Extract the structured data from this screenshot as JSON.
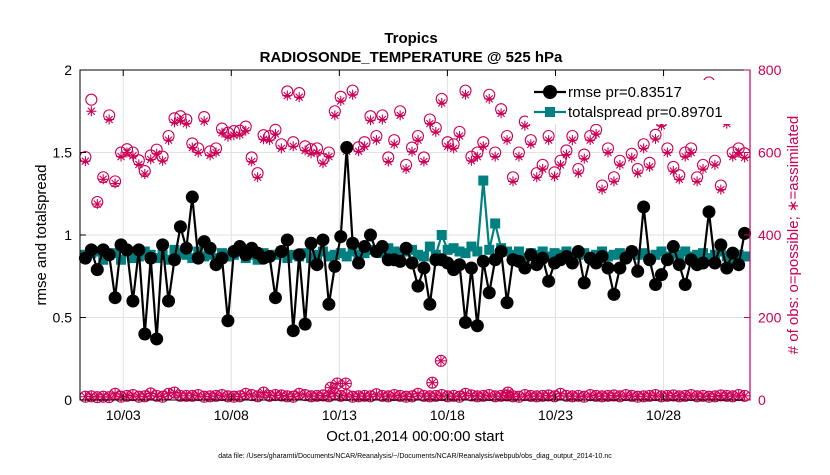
{
  "chart_data": {
    "type": "line",
    "title": "Tropics",
    "subtitle": "RADIOSONDE_TEMPERATURE @ 525 hPa",
    "xlabel": "Oct.01,2014 00:00:00 start",
    "ylabel_left": "rmse and totalspread",
    "ylabel_right": "# of obs: o=possible; ∗=assimilated",
    "footer": "data file: /Users/gharamti/Documents/NCAR/Reanalysis/~/Documents/NCAR/Reanalysis/webpub/obs_diag_output_2014-10.nc",
    "x_unit": "days since Oct.01,2014 00:00:00",
    "xlim": [
      1.0,
      32.0
    ],
    "ylim_left": [
      0,
      2
    ],
    "ylim_right": [
      0,
      800
    ],
    "x_ticks": [
      3,
      8,
      13,
      18,
      23,
      28
    ],
    "x_tick_labels": [
      "10/03",
      "10/08",
      "10/13",
      "10/18",
      "10/23",
      "10/28"
    ],
    "y_ticks_left": [
      "0",
      "0.5",
      "1",
      "1.5",
      "2"
    ],
    "y_ticks_right": [
      "0",
      "200",
      "400",
      "600",
      "800"
    ],
    "grid": true,
    "legend_placement": "top-right",
    "colors": {
      "rmse": "#000000",
      "spread": "#008080",
      "obs": "#cc0055"
    },
    "series": [
      {
        "name": "rmse pr=0.83517",
        "values": [
          0.86,
          0.91,
          0.79,
          0.91,
          0.88,
          0.62,
          0.94,
          0.91,
          0.6,
          0.91,
          0.4,
          0.86,
          0.37,
          0.94,
          0.6,
          0.85,
          1.05,
          0.92,
          1.23,
          0.86,
          0.96,
          0.92,
          0.82,
          0.86,
          0.48,
          0.9,
          0.93,
          0.88,
          0.92,
          0.89,
          0.86,
          0.87,
          0.62,
          0.9,
          0.97,
          0.42,
          0.88,
          0.46,
          0.95,
          0.82,
          0.97,
          0.58,
          0.81,
          0.99,
          1.53,
          0.95,
          0.83,
          0.93,
          1.0,
          0.9,
          0.93,
          0.85,
          0.85,
          0.84,
          0.92,
          0.83,
          0.69,
          0.8,
          0.58,
          0.85,
          0.85,
          0.83,
          0.79,
          0.82,
          0.47,
          0.8,
          0.45,
          0.84,
          0.65,
          0.85,
          0.9,
          0.59,
          0.85,
          0.84,
          0.8,
          0.88,
          0.82,
          0.86,
          0.72,
          0.83,
          0.85,
          0.87,
          0.83,
          0.9,
          0.71,
          0.86,
          0.83,
          0.87,
          0.8,
          0.64,
          0.8,
          0.86,
          0.9,
          0.78,
          1.17,
          0.85,
          0.7,
          0.76,
          0.85,
          0.93,
          0.82,
          0.7,
          0.85,
          0.82,
          0.83,
          1.14,
          0.83,
          0.94,
          0.8,
          0.89,
          0.82,
          1.01
        ]
      },
      {
        "name": "totalspread pr=0.89701",
        "values": [
          0.88,
          0.89,
          0.9,
          0.85,
          0.88,
          0.89,
          0.85,
          0.9,
          0.86,
          0.87,
          0.9,
          0.88,
          0.86,
          0.88,
          0.85,
          0.91,
          0.89,
          0.88,
          0.86,
          0.9,
          0.87,
          0.88,
          0.86,
          0.89,
          0.87,
          0.88,
          0.9,
          0.86,
          0.88,
          0.85,
          0.89,
          0.87,
          0.88,
          0.9,
          0.86,
          0.88,
          0.87,
          0.89,
          0.86,
          0.88,
          0.9,
          0.87,
          0.88,
          0.89,
          0.87,
          0.9,
          0.88,
          0.89,
          0.91,
          0.9,
          0.89,
          0.92,
          0.9,
          0.89,
          0.9,
          0.91,
          0.88,
          0.87,
          0.93,
          0.88,
          1.0,
          0.91,
          0.92,
          0.9,
          0.89,
          0.93,
          0.9,
          1.33,
          0.91,
          1.07,
          0.92,
          0.9,
          0.88,
          0.9,
          0.86,
          0.89,
          0.88,
          0.9,
          0.87,
          0.89,
          0.88,
          0.9,
          0.87,
          0.88,
          0.89,
          0.86,
          0.88,
          0.9,
          0.87,
          0.88,
          0.89,
          0.87,
          0.9,
          0.88,
          0.89,
          0.86,
          0.88,
          0.9,
          0.87,
          0.89,
          0.88,
          0.9,
          0.87,
          0.88,
          0.89,
          0.86,
          0.88,
          0.9,
          0.87,
          0.85,
          0.88,
          0.87
        ]
      },
      {
        "name": "possible",
        "values": [
          589,
          728,
          480,
          540,
          690,
          530,
          600,
          608,
          600,
          581,
          555,
          593,
          607,
          590,
          640,
          683,
          688,
          680,
          622,
          610,
          686,
          603,
          610,
          658,
          648,
          652,
          653,
          663,
          588,
          550,
          642,
          640,
          655,
          620,
          748,
          625,
          744,
          615,
          608,
          610,
          584,
          600,
          700,
          735,
          613,
          750,
          613,
          625,
          688,
          640,
          690,
          588,
          630,
          700,
          570,
          612,
          640,
          588,
          680,
          660,
          730,
          625,
          620,
          650,
          750,
          590,
          600,
          625,
          740,
          600,
          705,
          640,
          540,
          600,
          675,
          630,
          550,
          570,
          640,
          552,
          580,
          605,
          640,
          560,
          595,
          640,
          655,
          520,
          610,
          540,
          580,
          700,
          597,
          560,
          620,
          575,
          643,
          675,
          610,
          565,
          545,
          600,
          610,
          540,
          570,
          770,
          580,
          520,
          680,
          600,
          610,
          598
        ]
      },
      {
        "name": "assimilated",
        "values": [
          579,
          700,
          475,
          535,
          680,
          525,
          590,
          600,
          592,
          571,
          548,
          583,
          597,
          580,
          630,
          673,
          678,
          670,
          612,
          600,
          676,
          593,
          600,
          648,
          638,
          642,
          643,
          653,
          578,
          540,
          632,
          630,
          645,
          610,
          738,
          615,
          734,
          605,
          598,
          600,
          574,
          590,
          690,
          725,
          603,
          740,
          603,
          615,
          678,
          630,
          680,
          578,
          620,
          690,
          560,
          602,
          630,
          578,
          670,
          650,
          720,
          615,
          610,
          640,
          740,
          580,
          590,
          615,
          730,
          590,
          695,
          630,
          530,
          590,
          665,
          620,
          540,
          560,
          630,
          542,
          570,
          595,
          630,
          550,
          585,
          630,
          645,
          510,
          600,
          530,
          570,
          690,
          587,
          550,
          610,
          565,
          633,
          665,
          600,
          555,
          535,
          590,
          600,
          530,
          560,
          760,
          570,
          510,
          670,
          590,
          600,
          588
        ]
      }
    ],
    "obs_possible_low": [
      8,
      9,
      7,
      8,
      7,
      15,
      8,
      10,
      12,
      8,
      9,
      16,
      10,
      8,
      15,
      18,
      10,
      10,
      10,
      12,
      8,
      9,
      10,
      12,
      9,
      8,
      9,
      15,
      12,
      9,
      18,
      10,
      12,
      11,
      9,
      8,
      15,
      12,
      9,
      10,
      11,
      9,
      15,
      10,
      12,
      8,
      9,
      10,
      9,
      14,
      10,
      9,
      12,
      10,
      8,
      9,
      15,
      10,
      9,
      10,
      12,
      9,
      10,
      8,
      15,
      11,
      9,
      10,
      12,
      9,
      10,
      11,
      9,
      8,
      12,
      10,
      9,
      10,
      11,
      9,
      15,
      10,
      9,
      10,
      8,
      12,
      10,
      9,
      10,
      11,
      9,
      12,
      10,
      8,
      9,
      10,
      12,
      9,
      10,
      11,
      9,
      10,
      12,
      9,
      10,
      8,
      9,
      11,
      10,
      9,
      12,
      10
    ],
    "obs_possible_extra": [
      {
        "x": 12.6,
        "v": 30
      },
      {
        "x": 12.9,
        "v": 40
      },
      {
        "x": 13.3,
        "v": 40
      },
      {
        "x": 17.3,
        "v": 42
      },
      {
        "x": 17.7,
        "v": 95
      },
      {
        "x": 20.8,
        "v": 18
      }
    ]
  }
}
